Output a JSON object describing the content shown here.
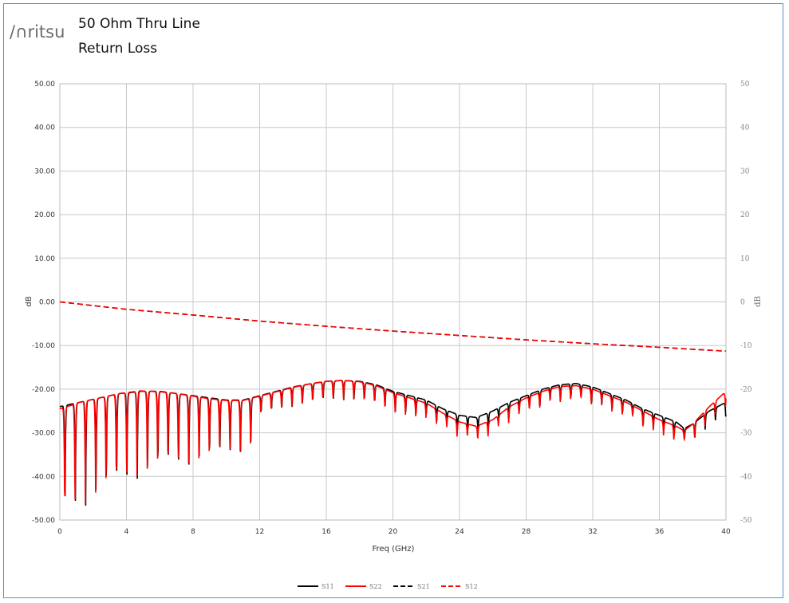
{
  "header": {
    "logo_text": "/∩ritsu",
    "title_line1": "50 Ohm Thru Line",
    "title_line2": "Return Loss"
  },
  "colors": {
    "s11": "#000000",
    "s22": "#ff0000",
    "s21": "#000000",
    "s12": "#ff0000",
    "grid": "#c8c8c8",
    "frame": "#5b8ec9"
  },
  "chart_data": {
    "type": "line",
    "xlabel": "Freq (GHz)",
    "ylabel": "dB",
    "ylabel_right": "dB",
    "xlim": [
      0,
      40
    ],
    "ylim": [
      -50,
      50
    ],
    "x_ticks": [
      0,
      4,
      8,
      12,
      16,
      20,
      24,
      28,
      32,
      36,
      40
    ],
    "y_ticks_left": [
      "50.00",
      "40.00",
      "30.00",
      "20.00",
      "10.00",
      "0.00",
      "-10.00",
      "-20.00",
      "-30.00",
      "-40.00",
      "-50.00"
    ],
    "y_ticks_right": [
      "50",
      "40",
      "30",
      "20",
      "10",
      "0",
      "-10",
      "-20",
      "-30",
      "-40",
      "-50"
    ],
    "grid": true,
    "legend_position": "bottom",
    "series": [
      {
        "name": "S11",
        "style": "solid",
        "x": [
          0,
          0.6,
          1.2,
          1.8,
          2.4,
          3.0,
          3.6,
          4.2,
          4.8,
          5.4,
          6.0,
          7.0,
          8.0,
          9.0,
          10.0,
          11.0,
          12.0,
          13.0,
          14.0,
          15.0,
          16.0,
          17.0,
          18.0,
          19.0,
          20.0,
          21.0,
          22.0,
          23.0,
          24.0,
          25.0,
          26.0,
          27.0,
          28.0,
          29.0,
          30.0,
          31.0,
          32.0,
          33.0,
          34.0,
          35.0,
          36.0,
          37.0,
          37.5,
          38.0,
          39.0,
          40.0
        ],
        "values": [
          -24,
          -23.5,
          -23,
          -22.5,
          -22,
          -21.5,
          -21,
          -20.8,
          -20.5,
          -20.5,
          -20.5,
          -21,
          -21.5,
          -22,
          -22.5,
          -22.5,
          -21.5,
          -20.5,
          -19.5,
          -18.8,
          -18.2,
          -18,
          -18.2,
          -19,
          -20.5,
          -21.5,
          -22.5,
          -24.5,
          -26,
          -26.5,
          -25,
          -23,
          -21.5,
          -20,
          -19,
          -18.7,
          -19.5,
          -21,
          -22.5,
          -24.5,
          -26,
          -27.5,
          -29,
          -28,
          -25,
          -23
        ]
      },
      {
        "name": "S22",
        "style": "solid",
        "x": [
          0,
          0.6,
          1.2,
          1.8,
          2.4,
          3.0,
          3.6,
          4.2,
          4.8,
          5.4,
          6.0,
          7.0,
          8.0,
          9.0,
          10.0,
          11.0,
          12.0,
          13.0,
          14.0,
          15.0,
          16.0,
          17.0,
          18.0,
          19.0,
          20.0,
          21.0,
          22.0,
          23.0,
          24.0,
          25.0,
          26.0,
          27.0,
          28.0,
          29.0,
          30.0,
          31.0,
          32.0,
          33.0,
          34.0,
          35.0,
          36.0,
          37.0,
          37.5,
          38.0,
          39.0,
          40.0
        ],
        "values": [
          -24.5,
          -23.8,
          -23,
          -22.5,
          -22,
          -21.5,
          -21,
          -20.7,
          -20.4,
          -20.5,
          -20.6,
          -21,
          -21.6,
          -22.2,
          -22.6,
          -22.6,
          -21.6,
          -20.6,
          -19.6,
          -18.8,
          -18.2,
          -18,
          -18.3,
          -19.2,
          -20.8,
          -22,
          -23.2,
          -25.5,
          -27.5,
          -28.5,
          -27,
          -24,
          -22,
          -20.5,
          -19.4,
          -19.2,
          -20,
          -21.5,
          -23,
          -25,
          -27,
          -28.5,
          -29.5,
          -28,
          -24,
          -20.5
        ]
      },
      {
        "name": "S21",
        "style": "dashed",
        "x": [
          0,
          4,
          8,
          12,
          16,
          20,
          24,
          28,
          32,
          36,
          40
        ],
        "values": [
          0,
          -1.7,
          -3.0,
          -4.4,
          -5.6,
          -6.7,
          -7.7,
          -8.7,
          -9.6,
          -10.4,
          -11.3
        ]
      },
      {
        "name": "S12",
        "style": "dashed",
        "x": [
          0,
          4,
          8,
          12,
          16,
          20,
          24,
          28,
          32,
          36,
          40
        ],
        "values": [
          0,
          -1.7,
          -3.0,
          -4.4,
          -5.6,
          -6.7,
          -7.7,
          -8.7,
          -9.6,
          -10.4,
          -11.3
        ]
      }
    ]
  }
}
